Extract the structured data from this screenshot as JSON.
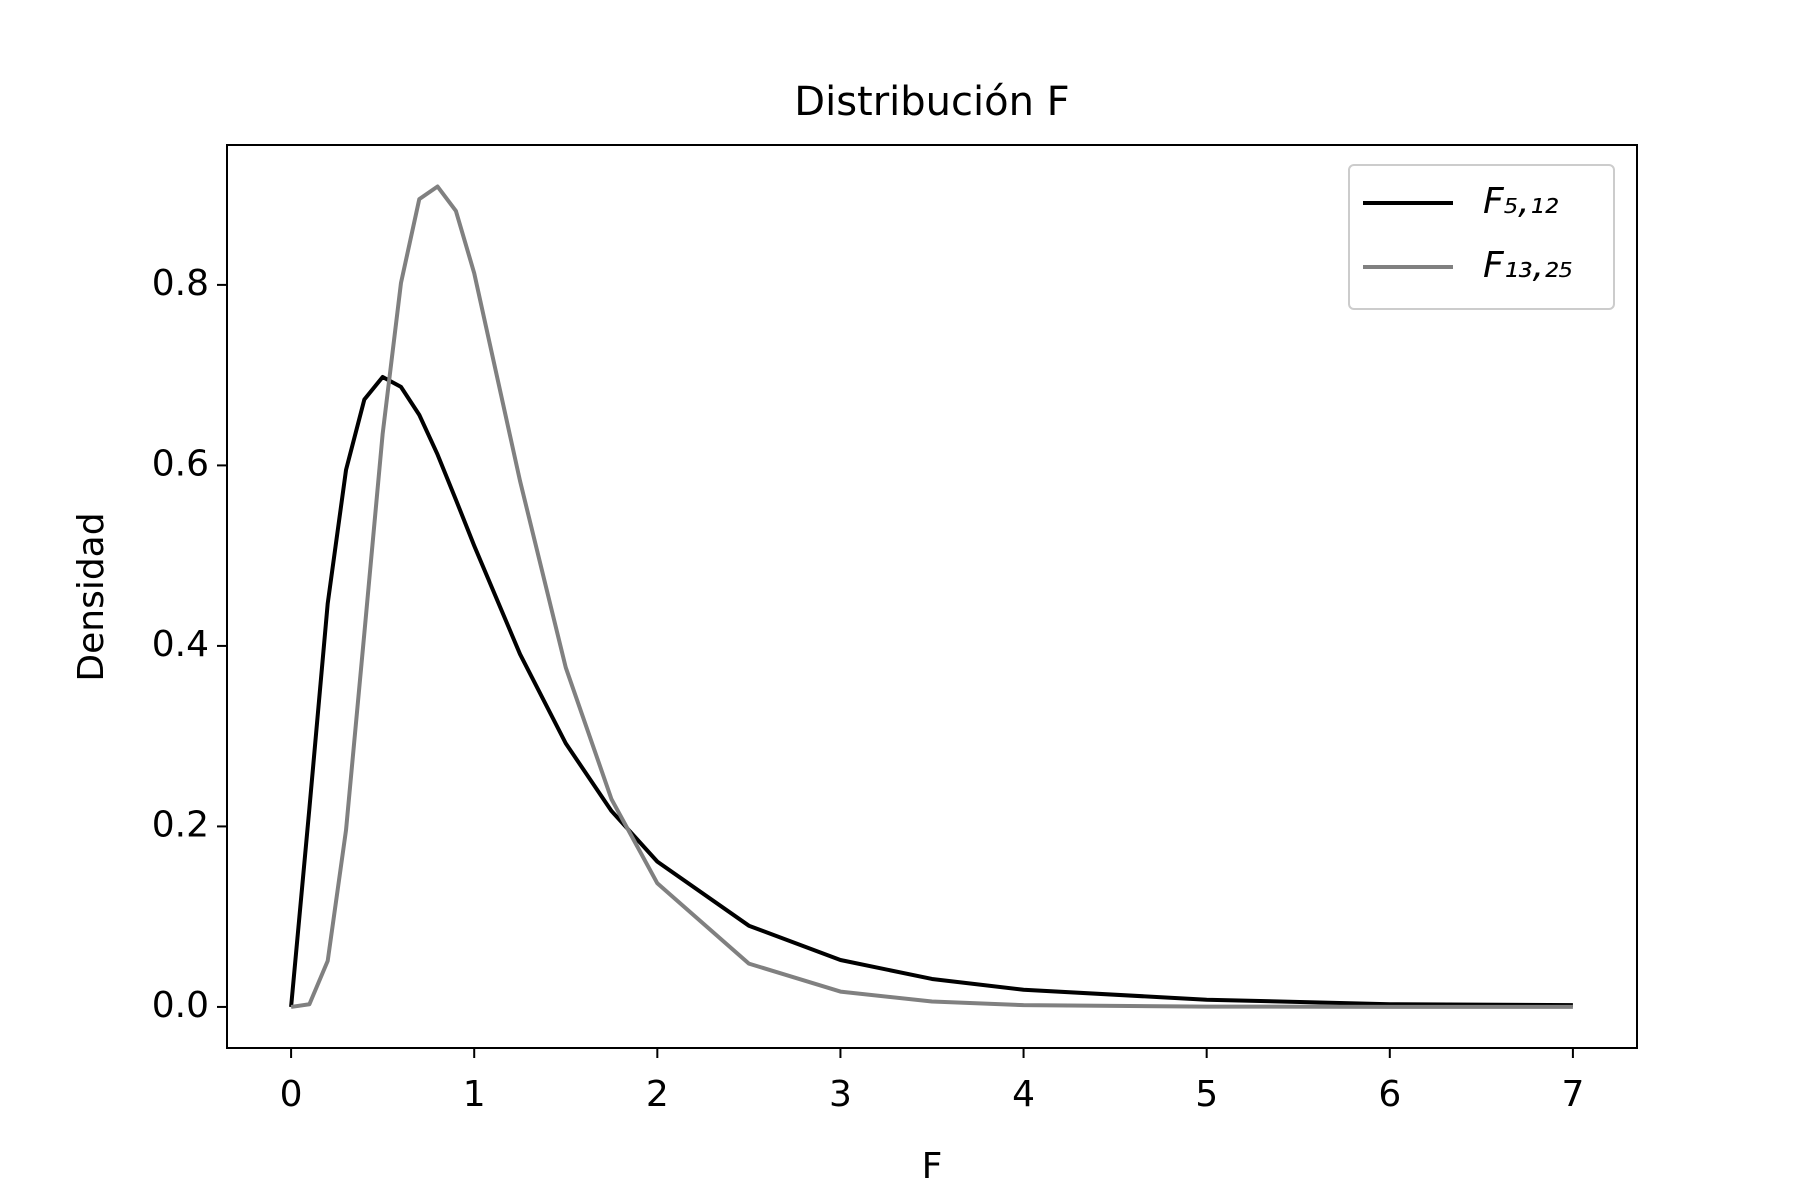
{
  "chart_data": {
    "type": "line",
    "title": "Distribución F",
    "x_label": "F",
    "y_label": "Densidad",
    "x": [
      0,
      0.1,
      0.2,
      0.3,
      0.4,
      0.5,
      0.6,
      0.7,
      0.8,
      0.9,
      1,
      1.25,
      1.5,
      1.75,
      2,
      2.5,
      3,
      3.5,
      4,
      5,
      6,
      7
    ],
    "series": [
      {
        "name": "F₅,₁₂",
        "color": "#000000",
        "values": [
          0,
          0.22,
          0.447,
          0.595,
          0.673,
          0.698,
          0.687,
          0.656,
          0.612,
          0.562,
          0.511,
          0.391,
          0.292,
          0.217,
          0.161,
          0.09,
          0.052,
          0.031,
          0.019,
          0.008,
          0.003,
          0.002
        ]
      },
      {
        "name": "F₁₃,₂₅",
        "color": "#808080",
        "values": [
          0,
          0.003,
          0.051,
          0.196,
          0.414,
          0.635,
          0.802,
          0.895,
          0.909,
          0.882,
          0.813,
          0.583,
          0.376,
          0.23,
          0.137,
          0.048,
          0.017,
          0.006,
          0.002,
          0.0004,
          0.0001,
          0
        ]
      }
    ],
    "xlim": [
      -0.35,
      7.35
    ],
    "ylim": [
      -0.0455,
      0.955
    ],
    "xticks": [
      0,
      1,
      2,
      3,
      4,
      5,
      6,
      7
    ],
    "yticks": [
      {
        "value": 0,
        "label": "0.0"
      },
      {
        "value": 0.2,
        "label": "0.2"
      },
      {
        "value": 0.4,
        "label": "0.4"
      },
      {
        "value": 0.6,
        "label": "0.6"
      },
      {
        "value": 0.8,
        "label": "0.8"
      }
    ],
    "legend": "upper right",
    "grid": false
  }
}
